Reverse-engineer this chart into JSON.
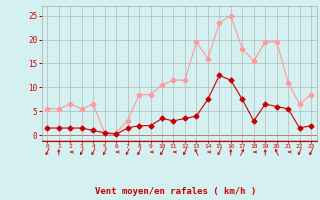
{
  "hours": [
    0,
    1,
    2,
    3,
    4,
    5,
    6,
    7,
    8,
    9,
    10,
    11,
    12,
    13,
    14,
    15,
    16,
    17,
    18,
    19,
    20,
    21,
    22,
    23
  ],
  "wind_avg": [
    1.5,
    1.5,
    1.5,
    1.5,
    1.0,
    0.5,
    0.2,
    1.5,
    2.0,
    2.0,
    3.5,
    3.0,
    3.5,
    4.0,
    7.5,
    12.5,
    11.5,
    7.5,
    3.0,
    6.5,
    6.0,
    5.5,
    1.5,
    2.0
  ],
  "wind_gust": [
    5.5,
    5.5,
    6.5,
    5.5,
    6.5,
    0.5,
    0.5,
    3.0,
    8.5,
    8.5,
    10.5,
    11.5,
    11.5,
    19.5,
    16.0,
    23.5,
    25.0,
    18.0,
    15.5,
    19.5,
    19.5,
    11.0,
    6.5,
    8.5
  ],
  "wind_dirs": [
    225,
    0,
    270,
    225,
    225,
    225,
    270,
    225,
    225,
    270,
    225,
    270,
    225,
    315,
    270,
    225,
    0,
    45,
    270,
    0,
    315,
    270,
    225,
    225
  ],
  "color_avg": "#cc0000",
  "color_gust": "#ff9999",
  "bg_color": "#d4f0f0",
  "grid_color": "#aaaaaa",
  "xlabel": "Vent moyen/en rafales ( km/h )",
  "xlabel_color": "#cc0000",
  "yticks": [
    0,
    5,
    10,
    15,
    20,
    25
  ],
  "ylim": [
    -1,
    27
  ],
  "xlim": [
    -0.5,
    23.5
  ],
  "figsize": [
    3.2,
    2.0
  ],
  "dpi": 100
}
